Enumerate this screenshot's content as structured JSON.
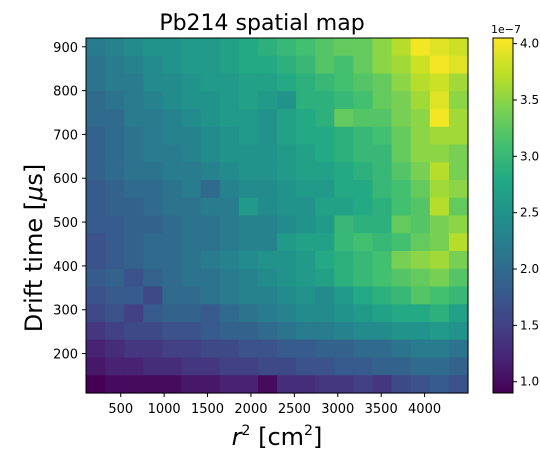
{
  "chart_data": {
    "type": "heatmap",
    "title": "Pb214 spatial map",
    "xlabel": "r² [cm²]",
    "ylabel": "Drift time [μs]",
    "xlim": [
      100,
      4500
    ],
    "ylim": [
      110,
      920
    ],
    "x_ticks": [
      500,
      1000,
      1500,
      2000,
      2500,
      3000,
      3500,
      4000
    ],
    "y_ticks": [
      200,
      300,
      400,
      500,
      600,
      700,
      800,
      900
    ],
    "colorbar": {
      "colormap": "viridis",
      "min": 0.9,
      "max": 4.05,
      "ticks": [
        1.0,
        1.5,
        2.0,
        2.5,
        3.0,
        3.5,
        4.0
      ],
      "tick_labels": [
        "1.0",
        "1.5",
        "2.0",
        "2.5",
        "3.0",
        "3.5",
        "4.0"
      ],
      "offset_text": "1e−7"
    },
    "grid": false,
    "n_cols": 20,
    "n_rows": 20,
    "values_note_units": "×1e-7, rows listed top (drift ~900 μs) to bottom (~120 μs), columns r² low to high",
    "values": [
      [
        2.2,
        2.3,
        2.4,
        2.5,
        2.5,
        2.6,
        2.6,
        2.7,
        2.8,
        2.9,
        3.0,
        3.1,
        3.2,
        3.3,
        3.3,
        3.5,
        3.7,
        4.0,
        3.9,
        3.8
      ],
      [
        2.1,
        2.2,
        2.3,
        2.4,
        2.5,
        2.6,
        2.6,
        2.7,
        2.8,
        2.8,
        2.9,
        3.0,
        3.2,
        3.1,
        3.3,
        3.5,
        3.6,
        3.8,
        4.0,
        3.9
      ],
      [
        2.1,
        2.2,
        2.2,
        2.4,
        2.4,
        2.5,
        2.6,
        2.6,
        2.7,
        2.7,
        2.8,
        2.9,
        3.0,
        3.1,
        3.2,
        3.3,
        3.5,
        3.7,
        3.8,
        3.6
      ],
      [
        2.0,
        2.1,
        2.2,
        2.3,
        2.4,
        2.5,
        2.5,
        2.6,
        2.7,
        2.6,
        2.5,
        2.9,
        2.9,
        3.0,
        3.1,
        3.3,
        3.4,
        3.6,
        3.9,
        3.5
      ],
      [
        2.0,
        2.0,
        2.2,
        2.2,
        2.3,
        2.4,
        2.5,
        2.6,
        2.6,
        2.5,
        2.7,
        2.8,
        2.9,
        3.3,
        3.2,
        3.2,
        3.4,
        3.5,
        4.0,
        3.6
      ],
      [
        1.9,
        2.0,
        2.1,
        2.2,
        2.3,
        2.3,
        2.4,
        2.5,
        2.6,
        2.5,
        2.7,
        2.8,
        2.8,
        2.9,
        3.0,
        3.1,
        3.3,
        3.5,
        3.6,
        3.6
      ],
      [
        1.9,
        2.0,
        2.1,
        2.2,
        2.2,
        2.3,
        2.4,
        2.5,
        2.5,
        2.5,
        2.6,
        2.7,
        2.8,
        2.9,
        3.0,
        3.0,
        3.3,
        3.5,
        3.5,
        3.4
      ],
      [
        1.9,
        2.0,
        2.1,
        2.1,
        2.2,
        2.2,
        2.3,
        2.4,
        2.5,
        2.5,
        2.6,
        2.7,
        2.7,
        2.8,
        2.9,
        3.0,
        3.2,
        3.4,
        3.7,
        3.4
      ],
      [
        1.8,
        1.9,
        2.0,
        2.0,
        2.1,
        2.2,
        2.0,
        2.3,
        2.4,
        2.4,
        2.5,
        2.6,
        2.6,
        2.8,
        2.8,
        3.0,
        3.1,
        3.3,
        3.6,
        3.5
      ],
      [
        1.8,
        1.9,
        1.9,
        2.0,
        2.1,
        2.1,
        2.2,
        2.2,
        2.6,
        2.4,
        2.5,
        2.5,
        2.7,
        2.7,
        2.8,
        2.9,
        3.1,
        3.2,
        3.7,
        3.3
      ],
      [
        1.8,
        1.8,
        1.9,
        1.9,
        2.0,
        2.1,
        2.1,
        2.2,
        2.3,
        2.3,
        2.4,
        2.5,
        2.6,
        3.0,
        2.9,
        2.9,
        3.3,
        3.2,
        3.4,
        3.5
      ],
      [
        1.7,
        1.8,
        1.9,
        2.0,
        2.0,
        2.1,
        2.1,
        2.2,
        2.3,
        2.3,
        2.6,
        2.7,
        2.7,
        3.0,
        3.1,
        3.0,
        3.1,
        3.3,
        3.4,
        3.7
      ],
      [
        1.7,
        1.8,
        1.9,
        2.0,
        2.0,
        2.1,
        2.2,
        2.3,
        2.4,
        2.5,
        2.5,
        2.6,
        2.8,
        2.9,
        3.0,
        3.1,
        3.4,
        3.5,
        3.6,
        3.4
      ],
      [
        1.8,
        1.9,
        1.7,
        1.9,
        2.0,
        2.1,
        2.1,
        2.2,
        2.3,
        2.4,
        2.5,
        2.6,
        2.7,
        2.9,
        3.0,
        3.1,
        3.2,
        3.3,
        3.4,
        3.2
      ],
      [
        1.7,
        1.8,
        1.8,
        1.6,
        2.0,
        2.0,
        2.1,
        2.2,
        2.3,
        2.3,
        2.4,
        2.5,
        2.4,
        2.6,
        2.8,
        2.9,
        3.0,
        3.2,
        3.1,
        3.0
      ],
      [
        1.6,
        1.7,
        1.5,
        1.8,
        1.9,
        1.9,
        1.8,
        2.0,
        2.1,
        2.2,
        2.3,
        2.4,
        2.4,
        2.5,
        2.6,
        2.7,
        2.8,
        2.8,
        2.9,
        2.7
      ],
      [
        1.4,
        1.5,
        1.6,
        1.6,
        1.7,
        1.7,
        1.8,
        1.9,
        1.9,
        2.0,
        2.1,
        2.2,
        2.2,
        2.3,
        2.4,
        2.4,
        2.5,
        2.5,
        2.6,
        2.5
      ],
      [
        1.2,
        1.3,
        1.4,
        1.4,
        1.5,
        1.5,
        1.6,
        1.6,
        1.7,
        1.7,
        1.8,
        1.8,
        1.9,
        1.9,
        2.0,
        2.0,
        2.1,
        2.2,
        2.2,
        2.1
      ],
      [
        1.1,
        1.2,
        1.2,
        1.3,
        1.3,
        1.4,
        1.4,
        1.5,
        1.5,
        1.6,
        1.6,
        1.7,
        1.7,
        1.8,
        1.8,
        1.9,
        1.9,
        2.0,
        2.0,
        1.9
      ],
      [
        0.9,
        1.0,
        1.0,
        1.0,
        1.0,
        1.1,
        1.1,
        1.2,
        1.2,
        1.0,
        1.3,
        1.3,
        1.4,
        1.4,
        1.5,
        1.4,
        1.6,
        1.7,
        1.8,
        1.7
      ]
    ]
  }
}
